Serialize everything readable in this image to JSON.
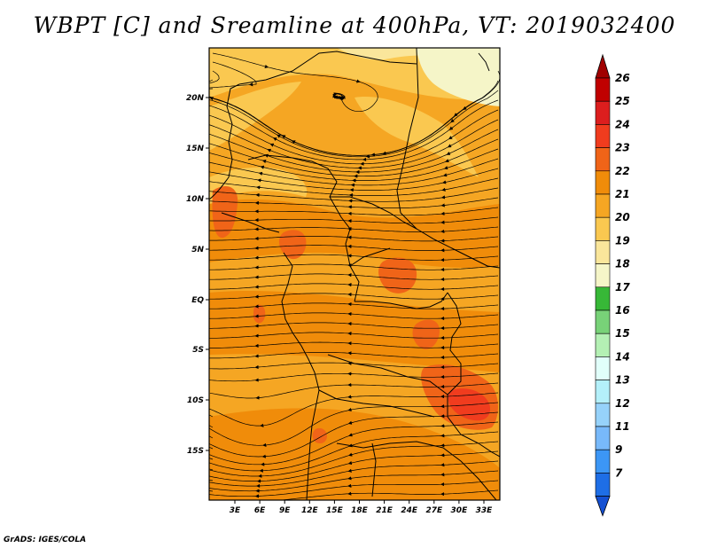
{
  "title": "WBPT [C] and Sreamline at 400hPa, VT: 2019032400",
  "credit": "GrADS: IGES/COLA",
  "map": {
    "lat_labels": [
      "20N",
      "15N",
      "10N",
      "5N",
      "EQ",
      "5S",
      "10S",
      "15S"
    ],
    "lon_labels": [
      "3E",
      "6E",
      "9E",
      "12E",
      "15E",
      "18E",
      "21E",
      "24E",
      "27E",
      "30E",
      "33E"
    ]
  },
  "colorbar": {
    "levels": [
      "26",
      "25",
      "24",
      "23",
      "22",
      "21",
      "20",
      "19",
      "18",
      "17",
      "16",
      "15",
      "14",
      "13",
      "12",
      "11",
      "9",
      "7"
    ],
    "colors": {
      "top_arrow": "#a00000",
      "c26": "#c00000",
      "c25": "#dc1e1e",
      "c24": "#f03c1e",
      "c23": "#f06418",
      "c22": "#f08c0a",
      "c21": "#f5a623",
      "c20": "#fac850",
      "c19": "#fae69b",
      "c18": "#f5f5c8",
      "c17": "#37b837",
      "c16": "#78d278",
      "c15": "#b4f0b4",
      "c14": "#e1fffa",
      "c13": "#b4f0fa",
      "c12": "#96d2fa",
      "c11": "#78b9fa",
      "c9": "#3c96f5",
      "c7": "#1e6ee6",
      "bottom_arrow": "#1450d2"
    }
  }
}
